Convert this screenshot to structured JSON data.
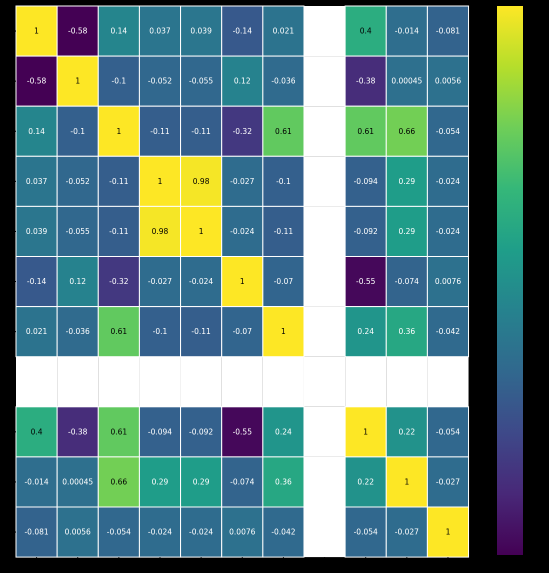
{
  "chart_data": {
    "type": "heatmap",
    "title": "",
    "row_labels": [
      "",
      "",
      "",
      "",
      "",
      "",
      "",
      "",
      "",
      "",
      ""
    ],
    "col_labels": [
      "",
      "",
      "",
      "",
      "",
      "",
      "",
      "",
      "",
      "",
      ""
    ],
    "values": [
      [
        1,
        -0.58,
        0.14,
        0.037,
        0.039,
        -0.14,
        0.021,
        null,
        0.4,
        -0.014,
        -0.081
      ],
      [
        -0.58,
        1,
        -0.1,
        -0.052,
        -0.055,
        0.12,
        -0.036,
        null,
        -0.38,
        0.00045,
        0.0056
      ],
      [
        0.14,
        -0.1,
        1,
        -0.11,
        -0.11,
        -0.32,
        0.61,
        null,
        0.61,
        0.66,
        -0.054
      ],
      [
        0.037,
        -0.052,
        -0.11,
        1,
        0.98,
        -0.027,
        -0.1,
        null,
        -0.094,
        0.29,
        -0.024
      ],
      [
        0.039,
        -0.055,
        -0.11,
        0.98,
        1,
        -0.024,
        -0.11,
        null,
        -0.092,
        0.29,
        -0.024
      ],
      [
        -0.14,
        0.12,
        -0.32,
        -0.027,
        -0.024,
        1,
        -0.07,
        null,
        -0.55,
        -0.074,
        0.0076
      ],
      [
        0.021,
        -0.036,
        0.61,
        -0.1,
        -0.11,
        -0.07,
        1,
        null,
        0.24,
        0.36,
        -0.042
      ],
      [
        null,
        null,
        null,
        null,
        null,
        null,
        null,
        null,
        null,
        null,
        null
      ],
      [
        0.4,
        -0.38,
        0.61,
        -0.094,
        -0.092,
        -0.55,
        0.24,
        null,
        1,
        0.22,
        -0.054
      ],
      [
        -0.014,
        0.00045,
        0.66,
        0.29,
        0.29,
        -0.074,
        0.36,
        null,
        0.22,
        1,
        -0.027
      ],
      [
        -0.081,
        0.0056,
        -0.054,
        -0.024,
        -0.024,
        0.0076,
        -0.042,
        null,
        -0.054,
        -0.027,
        1
      ]
    ],
    "labels": [
      [
        "1",
        "-0.58",
        "0.14",
        "0.037",
        "0.039",
        "-0.14",
        "0.021",
        "",
        "0.4",
        "-0.014",
        "-0.081"
      ],
      [
        "-0.58",
        "1",
        "-0.1",
        "-0.052",
        "-0.055",
        "0.12",
        "-0.036",
        "",
        "-0.38",
        "0.00045",
        "0.0056"
      ],
      [
        "0.14",
        "-0.1",
        "1",
        "-0.11",
        "-0.11",
        "-0.32",
        "0.61",
        "",
        "0.61",
        "0.66",
        "-0.054"
      ],
      [
        "0.037",
        "-0.052",
        "-0.11",
        "1",
        "0.98",
        "-0.027",
        "-0.1",
        "",
        "-0.094",
        "0.29",
        "-0.024"
      ],
      [
        "0.039",
        "-0.055",
        "-0.11",
        "0.98",
        "1",
        "-0.024",
        "-0.11",
        "",
        "-0.092",
        "0.29",
        "-0.024"
      ],
      [
        "-0.14",
        "0.12",
        "-0.32",
        "-0.027",
        "-0.024",
        "1",
        "-0.07",
        "",
        "-0.55",
        "-0.074",
        "0.0076"
      ],
      [
        "0.021",
        "-0.036",
        "0.61",
        "-0.1",
        "-0.11",
        "-0.07",
        "1",
        "",
        "0.24",
        "0.36",
        "-0.042"
      ],
      [
        "",
        "",
        "",
        "",
        "",
        "",
        "",
        "",
        "",
        "",
        ""
      ],
      [
        "0.4",
        "-0.38",
        "0.61",
        "-0.094",
        "-0.092",
        "-0.55",
        "0.24",
        "",
        "1",
        "0.22",
        "-0.054"
      ],
      [
        "-0.014",
        "0.00045",
        "0.66",
        "0.29",
        "0.29",
        "-0.074",
        "0.36",
        "",
        "0.22",
        "1",
        "-0.027"
      ],
      [
        "-0.081",
        "0.0056",
        "-0.054",
        "-0.024",
        "-0.024",
        "0.0076",
        "-0.042",
        "",
        "-0.054",
        "-0.027",
        "1"
      ]
    ],
    "missing_color": "#ffffff",
    "colormap": "viridis",
    "colormap_stops": [
      "#440154",
      "#482878",
      "#3e4989",
      "#31688e",
      "#26828e",
      "#1f9e89",
      "#35b779",
      "#6ece58",
      "#b5de2b",
      "#fde725"
    ],
    "vmin": -0.58,
    "vmax": 1,
    "grid_line_color": "#ffffff",
    "text_dark": "#000000",
    "text_light": "#ffffff",
    "colorbar": true
  }
}
